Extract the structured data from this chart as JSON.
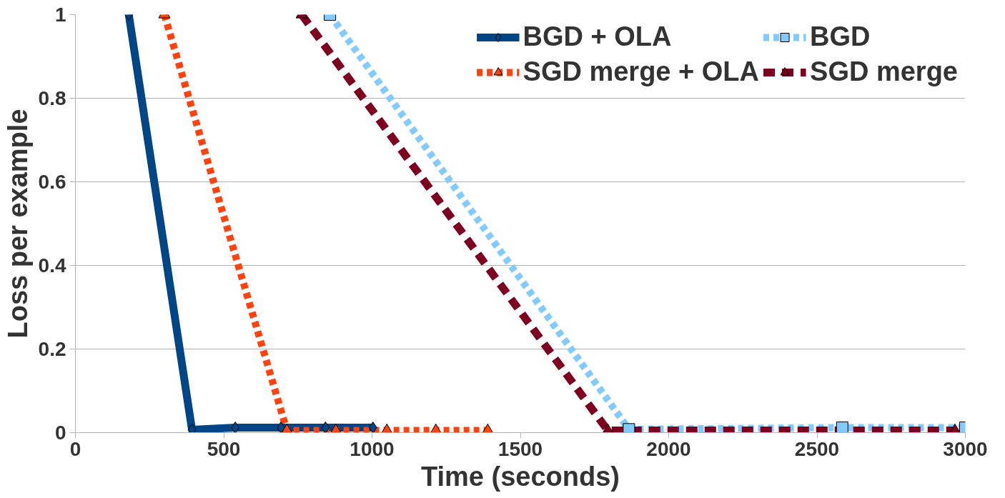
{
  "chart_data": {
    "type": "line",
    "xlabel": "Time (seconds)",
    "ylabel": "Loss per example",
    "xlim": [
      0,
      3000
    ],
    "ylim": [
      0,
      1
    ],
    "xticks": [
      0,
      500,
      1000,
      1500,
      2000,
      2500,
      3000
    ],
    "yticks": [
      0,
      {
        "value": 0.2,
        "label": "0.2"
      },
      {
        "value": 0.4,
        "label": "0.4"
      },
      {
        "value": 0.6,
        "label": "0.6"
      },
      {
        "value": 0.8,
        "label": "0.8"
      },
      1
    ],
    "grid": "y",
    "legend": "top right",
    "series": [
      {
        "name": "BGD + OLA",
        "color": "#004586",
        "marker": "diamond",
        "line_style": "solid",
        "x": [
          180,
          393,
          539,
          693,
          843,
          1003
        ],
        "values": [
          1,
          0.007,
          0.012,
          0.012,
          0.012,
          0.012
        ]
      },
      {
        "name": "SGD merge + OLA",
        "color": "#ff420e",
        "marker": "triangle",
        "line_style": "dotted",
        "x": [
          300,
          713,
          878,
          1050,
          1215,
          1390
        ],
        "values": [
          1,
          0.005,
          0.005,
          0.005,
          0.005,
          0.005
        ]
      },
      {
        "name": "BGD",
        "color": "#83caff",
        "marker": "square",
        "line_style": "dotted",
        "x": [
          858,
          1866,
          2585,
          3000
        ],
        "values": [
          1,
          0.008,
          0.012,
          0.012
        ]
      },
      {
        "name": "SGD merge",
        "color": "#7e0021",
        "marker": "triangle",
        "line_style": "dashed",
        "x": [
          763,
          1795,
          2965
        ],
        "values": [
          1,
          0.005,
          0.005
        ]
      }
    ]
  }
}
